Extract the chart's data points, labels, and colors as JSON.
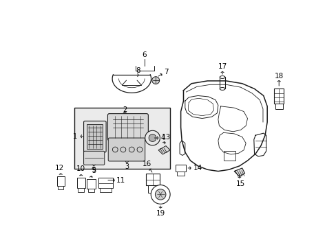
{
  "bg_color": "#ffffff",
  "line_color": "#1a1a1a",
  "label_color": "#000000",
  "fig_w": 4.89,
  "fig_h": 3.6,
  "dpi": 100
}
